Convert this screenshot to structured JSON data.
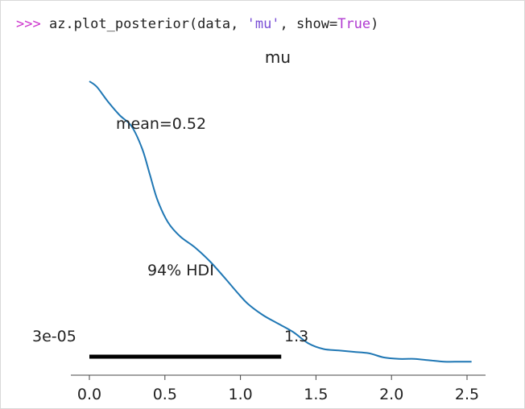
{
  "code": {
    "prompt": ">>>",
    "pre": " az.plot_posterior(data, ",
    "str": "'mu'",
    "mid": ", show=",
    "kw": "True",
    "post": ")"
  },
  "chart_data": {
    "type": "line",
    "title": "mu",
    "xlabel": "",
    "ylabel": "",
    "xlim": [
      -0.12,
      2.65
    ],
    "xticks": [
      0.0,
      0.5,
      1.0,
      1.5,
      2.0,
      2.5
    ],
    "xtick_labels": [
      "0.0",
      "0.5",
      "1.0",
      "1.5",
      "2.0",
      "2.5"
    ],
    "y_axis_visible": false,
    "grid": false,
    "series": [
      {
        "color": "#1f77b4",
        "x": [
          0.0,
          0.05,
          0.12,
          0.2,
          0.28,
          0.35,
          0.4,
          0.45,
          0.52,
          0.6,
          0.7,
          0.8,
          0.9,
          0.98,
          1.05,
          1.15,
          1.25,
          1.35,
          1.45,
          1.55,
          1.65,
          1.75,
          1.85,
          1.95,
          2.05,
          2.15,
          2.25,
          2.35,
          2.45,
          2.53
        ],
        "y": [
          1.0,
          0.98,
          0.93,
          0.88,
          0.84,
          0.76,
          0.67,
          0.58,
          0.5,
          0.45,
          0.41,
          0.36,
          0.3,
          0.25,
          0.21,
          0.17,
          0.14,
          0.11,
          0.07,
          0.05,
          0.045,
          0.04,
          0.035,
          0.02,
          0.015,
          0.015,
          0.01,
          0.005,
          0.005,
          0.005
        ]
      }
    ],
    "annotations": {
      "mean_label": "mean=0.52",
      "hdi_label": "94% HDI",
      "hdi_low_label": "3e-05",
      "hdi_high_label": "1.3",
      "hdi_low": 3e-05,
      "hdi_high": 1.27,
      "hdi_color": "#000000"
    }
  }
}
